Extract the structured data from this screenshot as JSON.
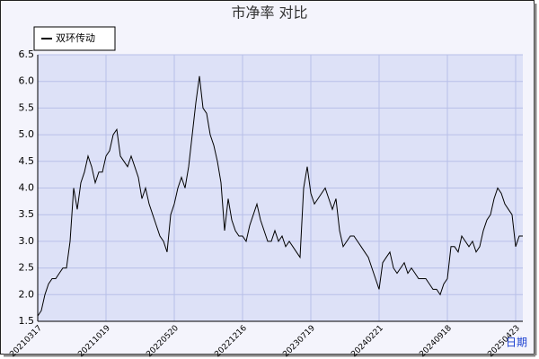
{
  "chart_data": {
    "type": "line",
    "title": "市净率 对比",
    "x_label": "日期",
    "categories": [
      "20210317",
      null,
      null,
      null,
      null,
      null,
      null,
      null,
      null,
      null,
      null,
      null,
      null,
      null,
      null,
      null,
      null,
      null,
      null,
      "20211019",
      null,
      null,
      null,
      null,
      null,
      null,
      null,
      null,
      null,
      null,
      null,
      null,
      null,
      null,
      null,
      null,
      null,
      null,
      "20220520",
      null,
      null,
      null,
      null,
      null,
      null,
      null,
      null,
      null,
      null,
      null,
      null,
      null,
      null,
      null,
      null,
      null,
      null,
      "20221216",
      null,
      null,
      null,
      null,
      null,
      null,
      null,
      null,
      null,
      null,
      null,
      null,
      null,
      null,
      null,
      null,
      null,
      null,
      "20230719",
      null,
      null,
      null,
      null,
      null,
      null,
      null,
      null,
      null,
      null,
      null,
      null,
      null,
      null,
      null,
      null,
      null,
      null,
      "20240221",
      null,
      null,
      null,
      null,
      null,
      null,
      null,
      null,
      null,
      null,
      null,
      null,
      null,
      null,
      null,
      null,
      null,
      null,
      "20240918",
      null,
      null,
      null,
      null,
      null,
      null,
      null,
      null,
      null,
      null,
      null,
      null,
      null,
      null,
      null,
      null,
      null,
      null,
      "20250423",
      null,
      null
    ],
    "series": [
      {
        "name": "双环传动",
        "color": "#000000",
        "values": [
          1.6,
          1.7,
          2.0,
          2.2,
          2.3,
          2.3,
          2.4,
          2.5,
          2.5,
          3.0,
          4.0,
          3.6,
          4.1,
          4.3,
          4.6,
          4.4,
          4.1,
          4.3,
          4.3,
          4.6,
          4.7,
          5.0,
          5.1,
          4.6,
          4.5,
          4.4,
          4.6,
          4.4,
          4.2,
          3.8,
          4.0,
          3.7,
          3.5,
          3.3,
          3.1,
          3.0,
          2.8,
          3.5,
          3.7,
          4.0,
          4.2,
          4.0,
          4.4,
          5.0,
          5.6,
          6.1,
          5.5,
          5.4,
          5.0,
          4.8,
          4.5,
          4.1,
          3.2,
          3.8,
          3.4,
          3.2,
          3.1,
          3.1,
          3.0,
          3.3,
          3.5,
          3.7,
          3.4,
          3.2,
          3.0,
          3.0,
          3.2,
          3.0,
          3.1,
          2.9,
          3.0,
          2.9,
          2.8,
          2.7,
          4.0,
          4.4,
          3.9,
          3.7,
          3.8,
          3.9,
          4.0,
          3.8,
          3.6,
          3.8,
          3.2,
          2.9,
          3.0,
          3.1,
          3.1,
          3.0,
          2.9,
          2.8,
          2.7,
          2.5,
          2.3,
          2.1,
          2.6,
          2.7,
          2.8,
          2.5,
          2.4,
          2.5,
          2.6,
          2.4,
          2.5,
          2.4,
          2.3,
          2.3,
          2.3,
          2.2,
          2.1,
          2.1,
          2.0,
          2.2,
          2.3,
          2.9,
          2.9,
          2.8,
          3.1,
          3.0,
          2.9,
          3.0,
          2.8,
          2.9,
          3.2,
          3.4,
          3.5,
          3.8,
          4.0,
          3.9,
          3.7,
          3.6,
          3.5,
          2.9,
          3.1,
          3.1
        ]
      }
    ],
    "ylim": [
      1.5,
      6.5
    ],
    "yticks": [
      1.5,
      {
        "value": 2,
        "label": "2.0"
      },
      2.5,
      {
        "value": 3,
        "label": "3.0"
      },
      3.5,
      {
        "value": 4,
        "label": "4.0"
      },
      4.5,
      {
        "value": 5,
        "label": "5.0"
      },
      5.5,
      {
        "value": 6,
        "label": "6.0"
      },
      6.5
    ],
    "grid": true
  }
}
